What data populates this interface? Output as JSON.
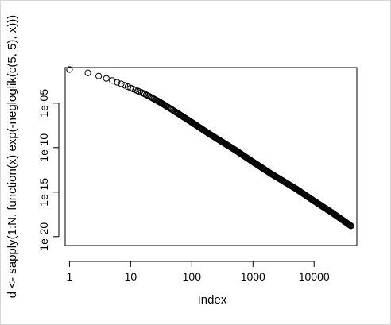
{
  "chart_data": {
    "type": "scatter",
    "marker": "open-circle",
    "xscale": "log",
    "yscale": "log",
    "xlabel": "Index",
    "ylabel": "d <- sapply(1:N, function(x) exp(-negloglik(c(5, 5), x)))",
    "x_ticks": [
      1,
      10,
      100,
      1000,
      10000
    ],
    "x_tick_labels": [
      "1",
      "10",
      "100",
      "1000",
      "10000"
    ],
    "y_ticks": [
      1e-20,
      1e-15,
      1e-10,
      1e-05
    ],
    "y_tick_labels": [
      "1e-20",
      "1e-15",
      "1e-10",
      "1e-05"
    ],
    "xlim": [
      0.85,
      50000
    ],
    "ylim": [
      1e-21,
      0.1
    ],
    "n_points": 40000,
    "x": [
      1,
      2,
      3,
      4,
      5,
      6,
      7,
      8,
      9,
      10,
      12,
      15,
      20,
      30,
      50,
      100,
      200,
      500,
      1000,
      2000,
      5000,
      10000,
      20000,
      40000
    ],
    "y": [
      0.06,
      0.025,
      0.011,
      0.006,
      0.0035,
      0.0022,
      0.0015,
      0.001,
      0.0007,
      0.0005,
      0.0003,
      0.00016,
      6e-05,
      1.3e-05,
      1.5e-06,
      7e-08,
      3e-09,
      6e-11,
      2.5e-12,
      1.1e-13,
      2.5e-15,
      1e-16,
      4.5e-18,
      1.6e-19
    ]
  },
  "grid": false,
  "colors": {
    "points": "#000000",
    "axes": "#000000",
    "background": "#ffffff"
  }
}
